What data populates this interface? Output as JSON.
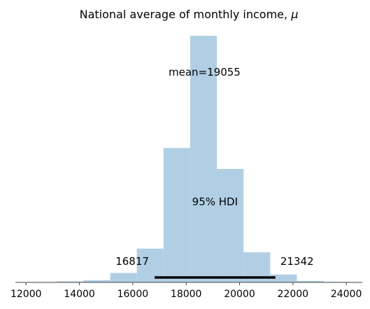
{
  "chart_data": {
    "type": "bar",
    "title": "National average of monthly income, μ",
    "xlim": [
      11600,
      24600
    ],
    "ylim": [
      0,
      1
    ],
    "xticks": [
      12000,
      14000,
      16000,
      18000,
      20000,
      22000,
      24000
    ],
    "bins": [
      {
        "x0": 12000,
        "x1": 13000,
        "value": 0.0
      },
      {
        "x0": 13150,
        "x1": 14150,
        "value": 0.004
      },
      {
        "x0": 14150,
        "x1": 15150,
        "value": 0.009
      },
      {
        "x0": 15150,
        "x1": 16150,
        "value": 0.038
      },
      {
        "x0": 16150,
        "x1": 17150,
        "value": 0.137
      },
      {
        "x0": 17150,
        "x1": 18150,
        "value": 0.545
      },
      {
        "x0": 18150,
        "x1": 19150,
        "value": 1.0
      },
      {
        "x0": 19150,
        "x1": 20150,
        "value": 0.46
      },
      {
        "x0": 20150,
        "x1": 21150,
        "value": 0.122
      },
      {
        "x0": 21150,
        "x1": 22150,
        "value": 0.032
      },
      {
        "x0": 22150,
        "x1": 23150,
        "value": 0.006
      },
      {
        "x0": 23150,
        "x1": 24150,
        "value": 0.002
      }
    ],
    "mean": 19055,
    "mean_label": "mean=19055",
    "hdi": {
      "label": "95% HDI",
      "low": 16817,
      "high": 21342,
      "low_label": "16817",
      "high_label": "21342"
    },
    "colors": {
      "bar": "#b1cfe4",
      "hdi_line": "#000000",
      "axis": "#444444"
    }
  }
}
